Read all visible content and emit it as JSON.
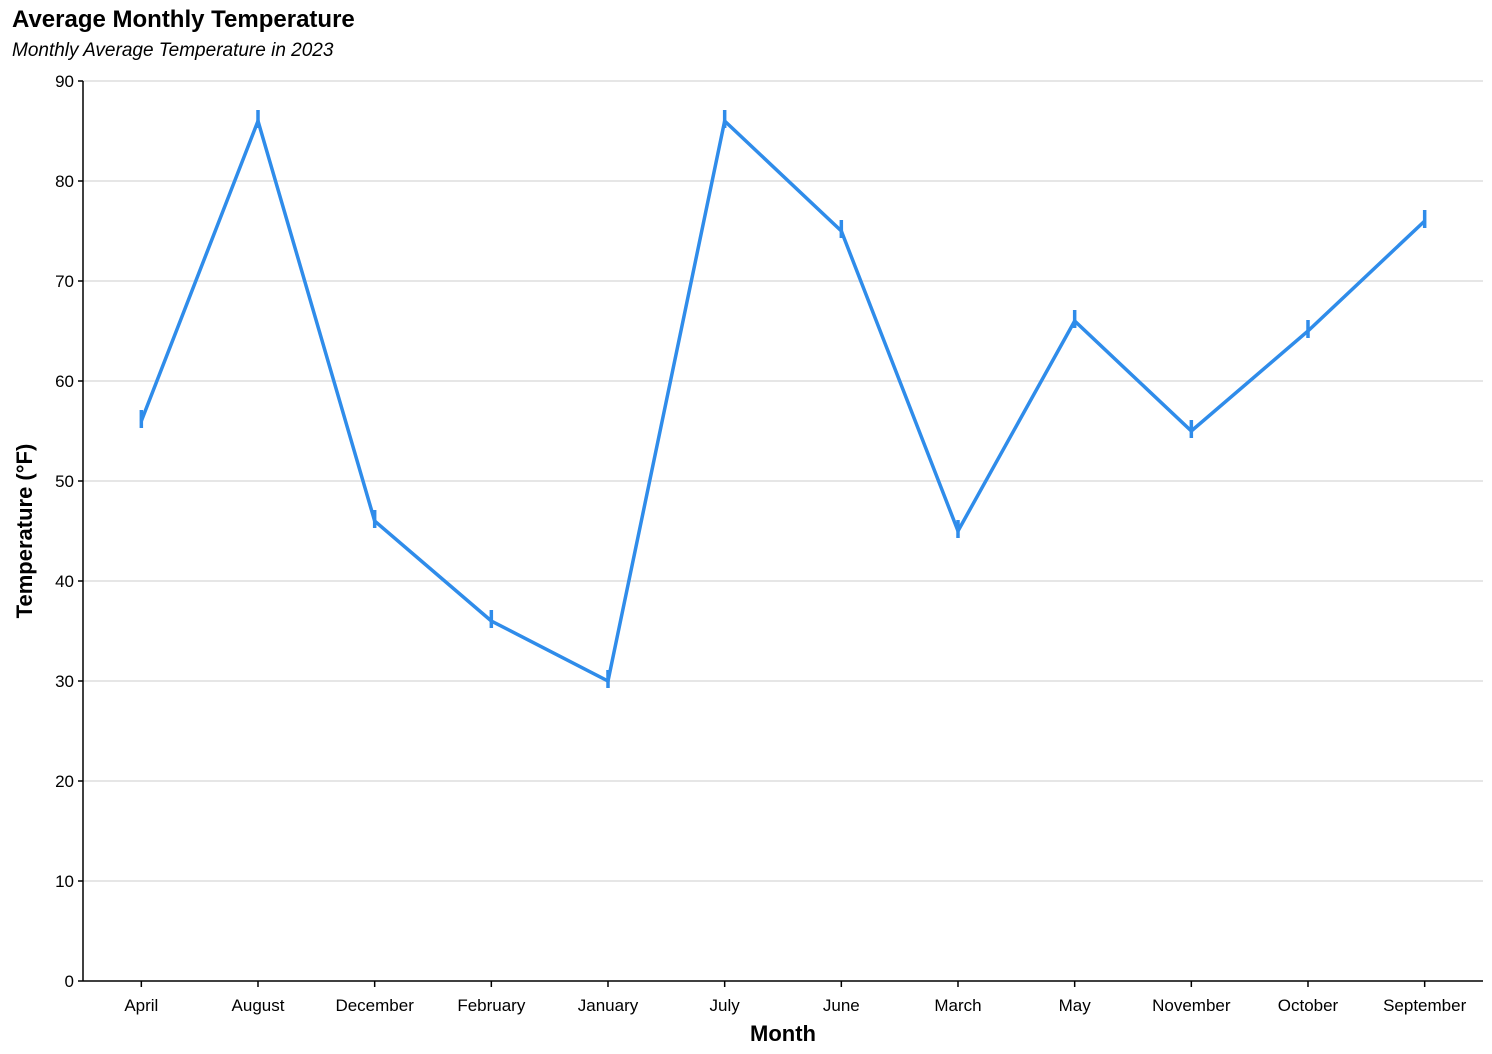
{
  "chart_data": {
    "type": "line",
    "title": "Average Monthly Temperature",
    "subtitle": "Monthly Average Temperature in 2023",
    "xlabel": "Month",
    "ylabel": "Temperature (°F)",
    "categories": [
      "April",
      "August",
      "December",
      "February",
      "January",
      "July",
      "June",
      "March",
      "May",
      "November",
      "October",
      "September"
    ],
    "series": [
      {
        "values": [
          56,
          86,
          46,
          36,
          30,
          86,
          75,
          45,
          66,
          55,
          65,
          76
        ],
        "color": "#2f8cea"
      }
    ],
    "ylim": [
      0,
      90
    ],
    "yticks": [
      0,
      10,
      20,
      30,
      40,
      50,
      60,
      70,
      80,
      90
    ],
    "grid": true,
    "legend": "none"
  }
}
